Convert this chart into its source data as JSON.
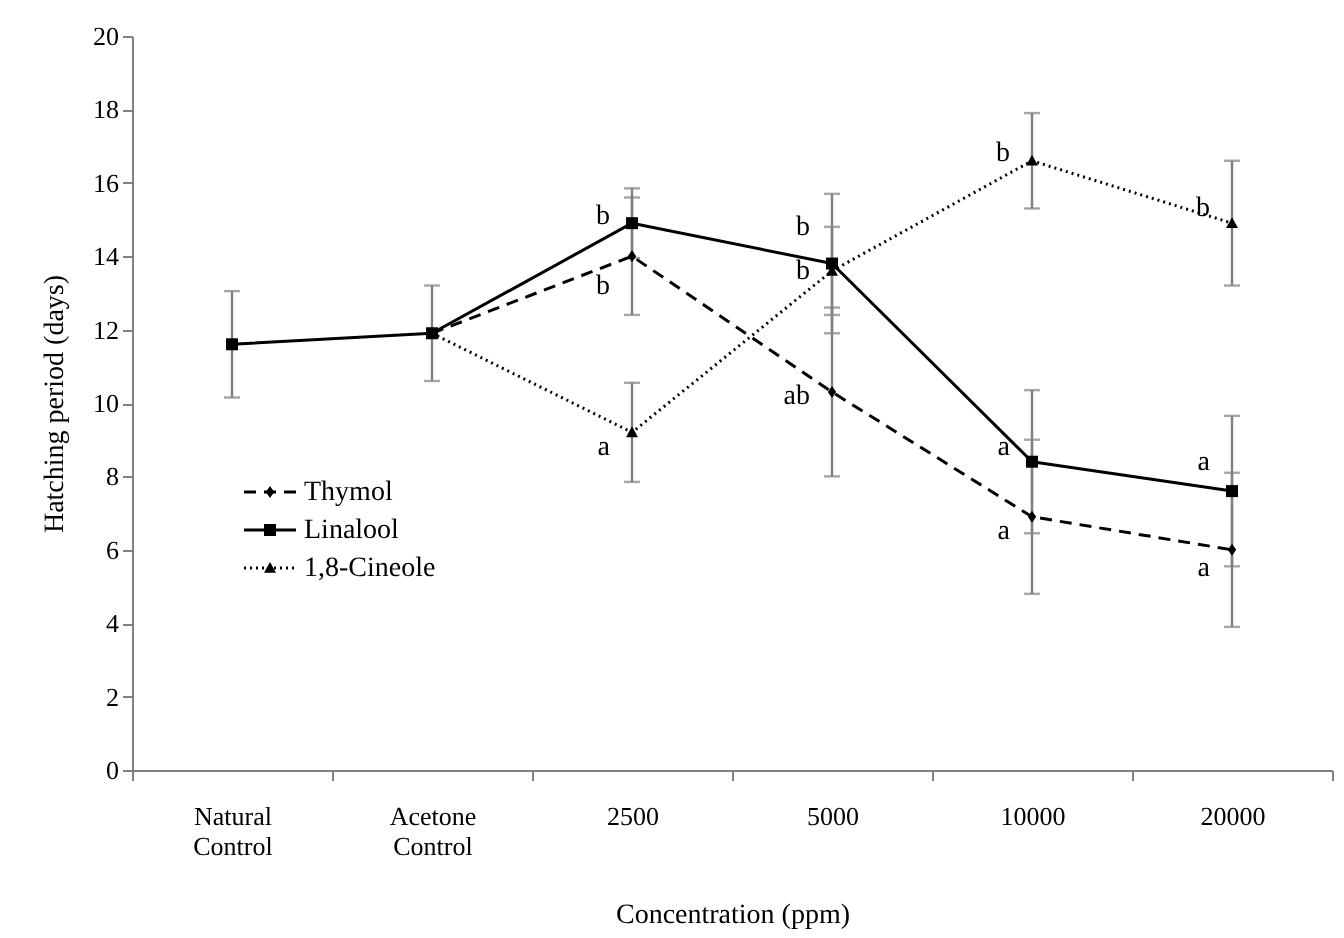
{
  "chart_data": {
    "type": "line",
    "xlabel": "Concentration (ppm)",
    "ylabel": "Hatching period (days)",
    "categories": [
      "Natural Control",
      "Acetone Control",
      "2500",
      "5000",
      "10000",
      "20000"
    ],
    "series": [
      {
        "name": "Thymol",
        "color": "#000000",
        "marker": "diamond",
        "line_style": "dashed",
        "values": [
          null,
          11.9,
          14.0,
          10.3,
          6.9,
          6.0
        ],
        "errors": [
          null,
          null,
          1.6,
          2.3,
          2.1,
          2.1
        ]
      },
      {
        "name": "Linalool",
        "color": "#000000",
        "marker": "square",
        "line_style": "solid",
        "values": [
          11.6,
          11.9,
          14.9,
          13.8,
          8.4,
          7.6
        ],
        "errors": [
          1.45,
          1.3,
          0.95,
          1.9,
          1.95,
          2.05
        ]
      },
      {
        "name": "1,8-Cineole",
        "color": "#000000",
        "marker": "triangle",
        "line_style": "dotted",
        "values": [
          null,
          11.9,
          9.2,
          13.6,
          16.6,
          14.9
        ],
        "errors": [
          null,
          null,
          1.35,
          1.2,
          1.3,
          1.7
        ]
      }
    ],
    "ylim": [
      0,
      20
    ],
    "yticks": [
      0,
      2,
      4,
      6,
      8,
      10,
      12,
      14,
      16,
      18,
      20
    ],
    "grid": false,
    "legend": "left",
    "annotations": [
      {
        "text": "b",
        "x": "2500",
        "y": 15.1
      },
      {
        "text": "b",
        "x": "2500",
        "y": 13.2
      },
      {
        "text": "a",
        "x": "2500",
        "y": 8.8
      },
      {
        "text": "b",
        "x": "5000",
        "y": 14.8
      },
      {
        "text": "b",
        "x": "5000",
        "y": 13.6
      },
      {
        "text": "ab",
        "x": "5000",
        "y": 10.2
      },
      {
        "text": "b",
        "x": "10000",
        "y": 16.8
      },
      {
        "text": "a",
        "x": "10000",
        "y": 8.8
      },
      {
        "text": "a",
        "x": "10000",
        "y": 6.5
      },
      {
        "text": "b",
        "x": "20000",
        "y": 15.3
      },
      {
        "text": "a",
        "x": "20000",
        "y": 8.4
      },
      {
        "text": "a",
        "x": "20000",
        "y": 5.5
      }
    ]
  }
}
